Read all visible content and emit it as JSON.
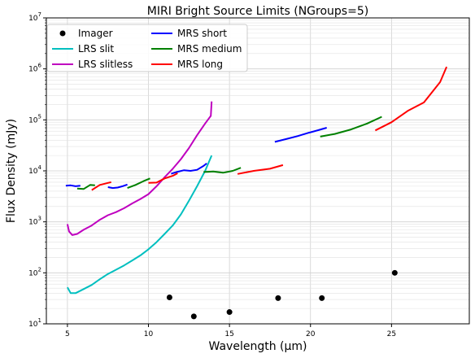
{
  "chart_data": {
    "type": "line",
    "title": "MIRI Bright Source Limits (NGroups=5)",
    "xlabel": "Wavelength (μm)",
    "ylabel": "Flux Density (mJy)",
    "xlim": [
      3.7,
      29.8
    ],
    "ylim": [
      10,
      10000000
    ],
    "yscale": "log",
    "grid": true,
    "legend_position": "top-left",
    "x_ticks": [
      {
        "value": 5,
        "label": "5"
      },
      {
        "value": 10,
        "label": "10"
      },
      {
        "value": 15,
        "label": "15"
      },
      {
        "value": 20,
        "label": "20"
      },
      {
        "value": 25,
        "label": "25"
      }
    ],
    "y_ticks": [
      {
        "value": 10,
        "label": "10",
        "sup": "1"
      },
      {
        "value": 100,
        "label": "10",
        "sup": "2"
      },
      {
        "value": 1000,
        "label": "10",
        "sup": "3"
      },
      {
        "value": 10000,
        "label": "10",
        "sup": "4"
      },
      {
        "value": 100000,
        "label": "10",
        "sup": "5"
      },
      {
        "value": 1000000,
        "label": "10",
        "sup": "6"
      },
      {
        "value": 10000000,
        "label": "10",
        "sup": "7"
      }
    ],
    "series": [
      {
        "name": "Imager",
        "color": "#000000",
        "style": "points",
        "x": [
          11.3,
          12.8,
          15.0,
          18.0,
          20.7,
          25.2
        ],
        "y": [
          33,
          14,
          17,
          32,
          32,
          100
        ]
      },
      {
        "name": "LRS slit",
        "color": "#00bfbf",
        "style": "line",
        "x": [
          5.0,
          5.2,
          5.5,
          6.0,
          6.5,
          7.0,
          7.5,
          8.0,
          8.5,
          9.0,
          9.5,
          10.0,
          10.5,
          11.0,
          11.5,
          12.0,
          12.5,
          13.0,
          13.5,
          13.9
        ],
        "y": [
          52,
          40,
          40,
          48,
          58,
          75,
          95,
          115,
          140,
          175,
          220,
          290,
          400,
          580,
          850,
          1400,
          2600,
          5000,
          10000,
          20000
        ]
      },
      {
        "name": "LRS slitless",
        "color": "#bf00bf",
        "style": "line",
        "x": [
          5.0,
          5.1,
          5.3,
          5.6,
          6.0,
          6.5,
          7.0,
          7.5,
          8.0,
          8.5,
          9.0,
          9.5,
          10.0,
          10.5,
          11.0,
          11.5,
          12.0,
          12.5,
          13.0,
          13.5,
          13.85,
          13.9
        ],
        "y": [
          900,
          650,
          550,
          580,
          700,
          850,
          1100,
          1350,
          1550,
          1850,
          2300,
          2800,
          3500,
          5000,
          7500,
          11000,
          17000,
          28000,
          50000,
          85000,
          120000,
          230000
        ]
      },
      {
        "name": "MRS short",
        "color": "#0000ff",
        "style": "segments",
        "segments": [
          {
            "x": [
              4.9,
              5.2,
              5.5,
              5.8
            ],
            "y": [
              5100,
              5200,
              5000,
              5100
            ]
          },
          {
            "x": [
              7.5,
              7.8,
              8.1,
              8.4,
              8.7
            ],
            "y": [
              4800,
              4600,
              4700,
              5000,
              5400
            ]
          },
          {
            "x": [
              11.4,
              11.8,
              12.2,
              12.6,
              13.0,
              13.4,
              13.6
            ],
            "y": [
              8800,
              9600,
              10300,
              10000,
              10500,
              12500,
              14000
            ]
          },
          {
            "x": [
              17.8,
              18.5,
              19.2,
              19.9,
              20.5,
              21.0
            ],
            "y": [
              37000,
              42000,
              48000,
              56000,
              63000,
              70000
            ]
          }
        ]
      },
      {
        "name": "MRS medium",
        "color": "#008000",
        "style": "segments",
        "segments": [
          {
            "x": [
              5.6,
              6.0,
              6.4,
              6.7
            ],
            "y": [
              4500,
              4400,
              5300,
              5200
            ]
          },
          {
            "x": [
              8.7,
              9.2,
              9.7,
              10.1
            ],
            "y": [
              4600,
              5300,
              6300,
              7100
            ]
          },
          {
            "x": [
              13.4,
              14.0,
              14.6,
              15.2,
              15.7
            ],
            "y": [
              9500,
              9700,
              9200,
              10000,
              11500
            ]
          },
          {
            "x": [
              20.6,
              21.5,
              22.5,
              23.5,
              24.4
            ],
            "y": [
              47000,
              53000,
              65000,
              85000,
              115000
            ]
          }
        ]
      },
      {
        "name": "MRS long",
        "color": "#ff0000",
        "style": "segments",
        "segments": [
          {
            "x": [
              6.5,
              7.0,
              7.5,
              7.7
            ],
            "y": [
              4200,
              5300,
              5800,
              6000
            ]
          },
          {
            "x": [
              10.0,
              10.5,
              11.0,
              11.5,
              11.8
            ],
            "y": [
              5800,
              5900,
              7100,
              8000,
              9000
            ]
          },
          {
            "x": [
              15.5,
              16.5,
              17.5,
              18.3
            ],
            "y": [
              8700,
              10000,
              11000,
              13000
            ]
          },
          {
            "x": [
              24.0,
              25.0,
              26.0,
              27.0,
              28.0,
              28.4
            ],
            "y": [
              62000,
              90000,
              150000,
              220000,
              550000,
              1100000
            ]
          }
        ]
      }
    ]
  }
}
